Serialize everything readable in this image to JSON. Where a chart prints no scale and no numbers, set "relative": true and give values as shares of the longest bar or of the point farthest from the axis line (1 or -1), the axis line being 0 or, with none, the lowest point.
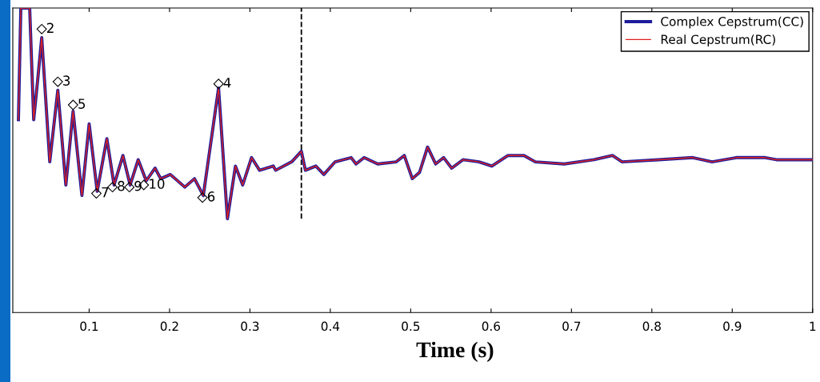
{
  "chart_data": {
    "type": "line",
    "relative": true,
    "xlabel": "Time (s)",
    "x": [
      0.012,
      0.015,
      0.026,
      0.031,
      0.036,
      0.041,
      0.051,
      0.061,
      0.071,
      0.08,
      0.091,
      0.1,
      0.11,
      0.122,
      0.131,
      0.142,
      0.151,
      0.161,
      0.171,
      0.182,
      0.189,
      0.201,
      0.219,
      0.231,
      0.242,
      0.261,
      0.272,
      0.282,
      0.291,
      0.302,
      0.312,
      0.329,
      0.332,
      0.352,
      0.364,
      0.369,
      0.382,
      0.392,
      0.406,
      0.426,
      0.432,
      0.442,
      0.459,
      0.482,
      0.492,
      0.502,
      0.511,
      0.521,
      0.531,
      0.541,
      0.551,
      0.565,
      0.585,
      0.601,
      0.621,
      0.641,
      0.655,
      0.691,
      0.728,
      0.751,
      0.763,
      0.808,
      0.851,
      0.875,
      0.905,
      0.941,
      0.955,
      1.0
    ],
    "series": [
      {
        "name": "Complex Cepstrum(CC)",
        "color": "#1c1c9c",
        "values": [
          0.47,
          1,
          1,
          0.47,
          0.66,
          0.86,
          0.27,
          0.61,
          0.16,
          0.51,
          0.11,
          0.45,
          0.13,
          0.38,
          0.16,
          0.3,
          0.16,
          0.28,
          0.18,
          0.24,
          0.19,
          0.21,
          0.15,
          0.19,
          0.11,
          0.62,
          0,
          0.25,
          0.16,
          0.29,
          0.23,
          0.25,
          0.23,
          0.27,
          0.32,
          0.23,
          0.25,
          0.21,
          0.27,
          0.29,
          0.26,
          0.29,
          0.26,
          0.27,
          0.3,
          0.19,
          0.22,
          0.34,
          0.26,
          0.29,
          0.24,
          0.28,
          0.27,
          0.25,
          0.3,
          0.3,
          0.27,
          0.26,
          0.28,
          0.3,
          0.27,
          0.28,
          0.29,
          0.27,
          0.29,
          0.29,
          0.28,
          0.28
        ]
      },
      {
        "name": "Real Cepstrum(RC)",
        "color": "#e0201e",
        "values": [
          0.47,
          1,
          1,
          0.47,
          0.66,
          0.86,
          0.27,
          0.61,
          0.16,
          0.51,
          0.11,
          0.45,
          0.13,
          0.38,
          0.16,
          0.3,
          0.16,
          0.28,
          0.18,
          0.24,
          0.19,
          0.21,
          0.15,
          0.19,
          0.11,
          0.62,
          0,
          0.25,
          0.16,
          0.29,
          0.23,
          0.25,
          0.23,
          0.27,
          0.32,
          0.23,
          0.25,
          0.21,
          0.27,
          0.29,
          0.26,
          0.29,
          0.26,
          0.27,
          0.3,
          0.19,
          0.22,
          0.34,
          0.26,
          0.29,
          0.24,
          0.28,
          0.27,
          0.25,
          0.3,
          0.3,
          0.27,
          0.26,
          0.28,
          0.3,
          0.27,
          0.28,
          0.29,
          0.27,
          0.29,
          0.29,
          0.28,
          0.28
        ]
      }
    ],
    "xlim": [
      0.005,
      1
    ],
    "xticks": [
      0.1,
      0.2,
      0.3,
      0.4,
      0.5,
      0.6,
      0.7,
      0.8,
      0.9,
      1
    ],
    "tick_labels": "x",
    "ref_lines": [
      {
        "axis": "x",
        "value": 0.364,
        "color": "#000000",
        "line_style": "dashed"
      }
    ],
    "annotations": [
      {
        "text": "2",
        "x": 0.041,
        "y": 0.9
      },
      {
        "text": "3",
        "x": 0.061,
        "y": 0.65
      },
      {
        "text": "5",
        "x": 0.08,
        "y": 0.54
      },
      {
        "text": "4",
        "x": 0.261,
        "y": 0.64
      },
      {
        "text": "7",
        "x": 0.109,
        "y": 0.12
      },
      {
        "text": "8",
        "x": 0.129,
        "y": 0.15
      },
      {
        "text": "9",
        "x": 0.15,
        "y": 0.15
      },
      {
        "text": "10",
        "x": 0.168,
        "y": 0.16
      },
      {
        "text": "6",
        "x": 0.241,
        "y": 0.1
      }
    ],
    "legend": "top right",
    "grid": false
  }
}
